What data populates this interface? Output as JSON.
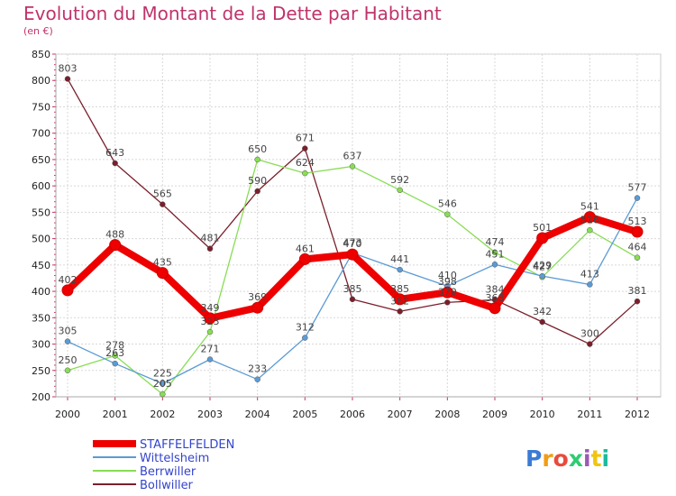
{
  "header": {
    "title": "Evolution du Montant de la Dette par Habitant",
    "subtitle": "(en €)"
  },
  "logo": {
    "text": "Proxiti"
  },
  "chart_data": {
    "type": "line",
    "x": [
      2000,
      2001,
      2002,
      2003,
      2004,
      2005,
      2006,
      2007,
      2008,
      2009,
      2010,
      2011,
      2012
    ],
    "ylim": [
      200,
      850
    ],
    "yticks": [
      200,
      250,
      300,
      350,
      400,
      450,
      500,
      550,
      600,
      650,
      700,
      750,
      800,
      850
    ],
    "grid": true,
    "legend_position": "bottom-left",
    "series": [
      {
        "name": "STAFFELFELDEN",
        "color": "#ee0000",
        "values": [
          402,
          488,
          435,
          349,
          369,
          461,
          470,
          385,
          398,
          368,
          501,
          541,
          513
        ]
      },
      {
        "name": "Wittelsheim",
        "color": "#5b9bd5",
        "values": [
          305,
          263,
          225,
          271,
          233,
          312,
          473,
          441,
          410,
          451,
          429,
          413,
          577
        ]
      },
      {
        "name": "Berrwiller",
        "color": "#88dd55",
        "values": [
          250,
          278,
          205,
          323,
          650,
          624,
          637,
          592,
          546,
          474,
          427,
          516,
          464
        ]
      },
      {
        "name": "Bollwiller",
        "color": "#7a1f2b",
        "values": [
          803,
          643,
          565,
          481,
          590,
          671,
          385,
          362,
          379,
          384,
          342,
          300,
          381
        ]
      }
    ]
  }
}
